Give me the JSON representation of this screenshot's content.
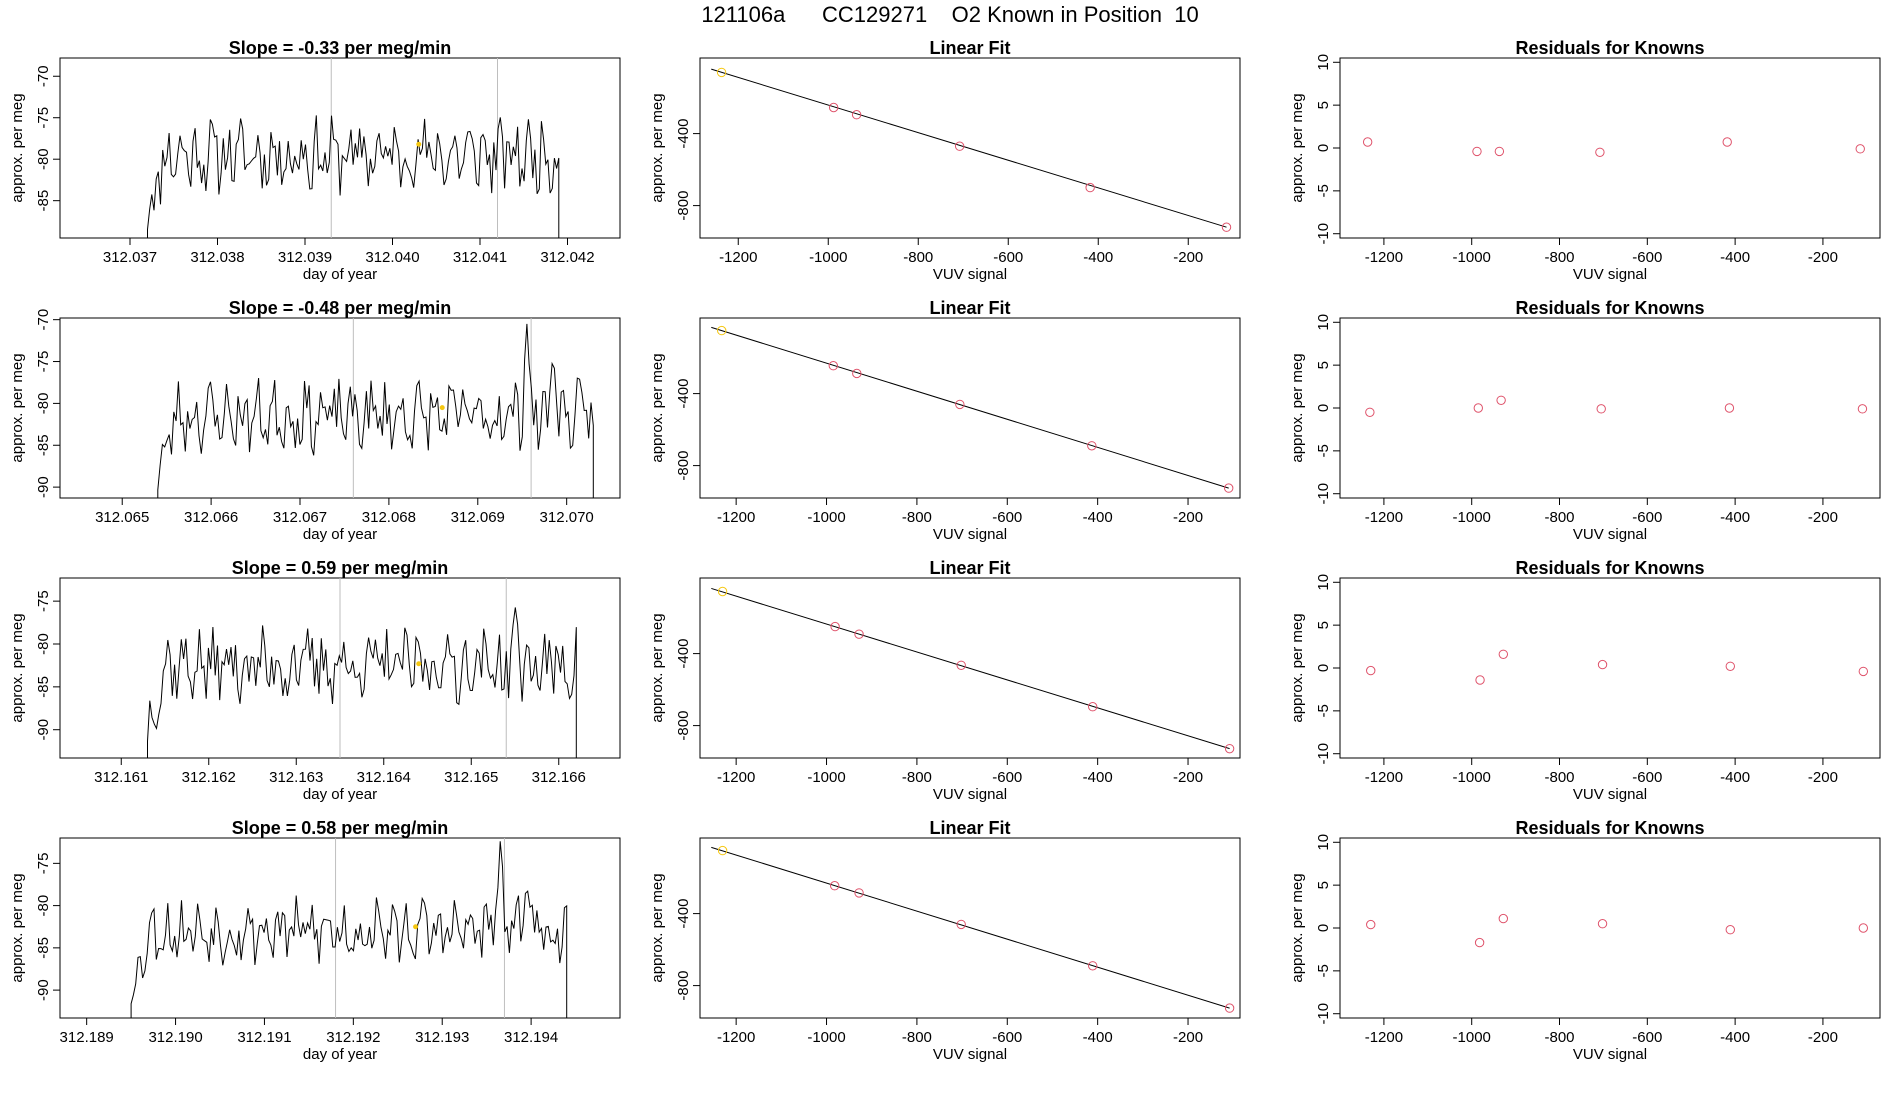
{
  "figure_title": "121106a      CC129271    O2 Known in Position  10",
  "colors": {
    "line": "#000000",
    "box": "#000000",
    "vline": "#bebebe",
    "point": "#df536b",
    "known_point": "#f5c710",
    "fit": "#000000"
  },
  "chart_data": [
    {
      "type": "line",
      "panel": "timeseries",
      "title": "Slope =  -0.33  per meg/min",
      "xlabel": "day of year",
      "ylabel": "approx. per meg",
      "xlim": [
        312.0362,
        312.0426
      ],
      "ylim": [
        -89.5,
        -67.8
      ],
      "xticks": [
        312.037,
        312.038,
        312.039,
        312.04,
        312.041,
        312.042
      ],
      "xtick_labels": [
        "312.037",
        "312.038",
        "312.039",
        "312.040",
        "312.041",
        "312.042"
      ],
      "yticks": [
        -85,
        -80,
        -75,
        -70
      ],
      "ytick_labels": [
        "-85",
        "-80",
        "-75",
        "-70"
      ],
      "vlines": [
        312.0393,
        312.0412
      ],
      "marker": {
        "x": 312.0403,
        "y": -78.2
      },
      "x_start": 312.0372,
      "x_end": 312.0419,
      "seed": 11,
      "base": -79.5,
      "amp": 3.4,
      "peaks": []
    },
    {
      "type": "line",
      "panel": "timeseries",
      "title": "Slope =  -0.48  per meg/min",
      "xlabel": "day of year",
      "ylabel": "approx. per meg",
      "xlim": [
        312.0643,
        312.0706
      ],
      "ylim": [
        -91.3,
        -69.8
      ],
      "xticks": [
        312.065,
        312.066,
        312.067,
        312.068,
        312.069,
        312.07
      ],
      "xtick_labels": [
        "312.065",
        "312.066",
        "312.067",
        "312.068",
        "312.069",
        "312.070"
      ],
      "yticks": [
        -90,
        -85,
        -80,
        -75,
        -70
      ],
      "ytick_labels": [
        "-90",
        "-85",
        "-80",
        "-75",
        "-70"
      ],
      "vlines": [
        312.0676,
        312.0696
      ],
      "marker": {
        "x": 312.0686,
        "y": -80.5
      },
      "x_start": 312.0654,
      "x_end": 312.0703,
      "seed": 23,
      "base": -81.5,
      "amp": 3.2,
      "peaks": [
        {
          "x": 312.06955,
          "y": -70.0
        },
        {
          "x": 312.06985,
          "y": -73.5
        }
      ]
    },
    {
      "type": "line",
      "panel": "timeseries",
      "title": "Slope =  0.59  per meg/min",
      "xlabel": "day of year",
      "ylabel": "approx. per meg",
      "xlim": [
        312.1603,
        312.1667
      ],
      "ylim": [
        -93.3,
        -72.3
      ],
      "xticks": [
        312.161,
        312.162,
        312.163,
        312.164,
        312.165,
        312.166
      ],
      "xtick_labels": [
        "312.161",
        "312.162",
        "312.163",
        "312.164",
        "312.165",
        "312.166"
      ],
      "yticks": [
        -90,
        -85,
        -80,
        -75
      ],
      "ytick_labels": [
        "-90",
        "-85",
        "-80",
        "-75"
      ],
      "vlines": [
        312.1635,
        312.1654
      ],
      "marker": {
        "x": 312.1644,
        "y": -82.3
      },
      "x_start": 312.1613,
      "x_end": 312.1662,
      "seed": 37,
      "base": -82.5,
      "amp": 3.3,
      "peaks": [
        {
          "x": 312.1655,
          "y": -75.5
        }
      ]
    },
    {
      "type": "line",
      "panel": "timeseries",
      "title": "Slope =  0.58  per meg/min",
      "xlabel": "day of year",
      "ylabel": "approx. per meg",
      "xlim": [
        312.1887,
        312.195
      ],
      "ylim": [
        -93.3,
        -72.0
      ],
      "xticks": [
        312.189,
        312.19,
        312.191,
        312.192,
        312.193,
        312.194
      ],
      "xtick_labels": [
        "312.189",
        "312.190",
        "312.191",
        "312.192",
        "312.193",
        "312.194"
      ],
      "yticks": [
        -90,
        -85,
        -80,
        -75
      ],
      "ytick_labels": [
        "-90",
        "-85",
        "-80",
        "-75"
      ],
      "vlines": [
        312.1918,
        312.1937
      ],
      "marker": {
        "x": 312.1927,
        "y": -82.5
      },
      "x_start": 312.1895,
      "x_end": 312.1944,
      "seed": 53,
      "base": -83.0,
      "amp": 2.9,
      "peaks": [
        {
          "x": 312.19365,
          "y": -72.0
        },
        {
          "x": 312.19395,
          "y": -76.0
        }
      ]
    },
    {
      "type": "scatter",
      "panel": "fit",
      "title": "Linear Fit",
      "xlabel": "VUV signal",
      "ylabel": "approx. per meg",
      "xlim": [
        -1285,
        -85
      ],
      "ylim": [
        -980,
        20
      ],
      "xticks": [
        -1200,
        -1000,
        -800,
        -600,
        -400,
        -200
      ],
      "xtick_labels": [
        "-1200",
        "-1000",
        "-800",
        "-600",
        "-400",
        "-200"
      ],
      "yticks": [
        -400,
        -800
      ],
      "ytick_labels": [
        "-400",
        "-800"
      ],
      "x": [
        -1237,
        -988,
        -937,
        -708,
        -418,
        -115
      ],
      "y": [
        -60,
        -255,
        -295,
        -470,
        -700,
        -920
      ],
      "fit_line": [
        [
          -1260,
          -42
        ],
        [
          -115,
          -920
        ]
      ],
      "known_index": 0
    },
    {
      "type": "scatter",
      "panel": "fit",
      "title": "Linear Fit",
      "xlabel": "VUV signal",
      "ylabel": "approx. per meg",
      "xlim": [
        -1280,
        -85
      ],
      "ylim": [
        -980,
        20
      ],
      "xticks": [
        -1200,
        -1000,
        -800,
        -600,
        -400,
        -200
      ],
      "xtick_labels": [
        "-1200",
        "-1000",
        "-800",
        "-600",
        "-400",
        "-200"
      ],
      "yticks": [
        -400,
        -800
      ],
      "ytick_labels": [
        "-400",
        "-800"
      ],
      "x": [
        -1232,
        -985,
        -933,
        -705,
        -413,
        -110
      ],
      "y": [
        -50,
        -245,
        -288,
        -460,
        -690,
        -925
      ],
      "fit_line": [
        [
          -1255,
          -32
        ],
        [
          -110,
          -925
        ]
      ],
      "known_index": 0
    },
    {
      "type": "scatter",
      "panel": "fit",
      "title": "Linear Fit",
      "xlabel": "VUV signal",
      "ylabel": "approx. per meg",
      "xlim": [
        -1280,
        -85
      ],
      "ylim": [
        -980,
        20
      ],
      "xticks": [
        -1200,
        -1000,
        -800,
        -600,
        -400,
        -200
      ],
      "xtick_labels": [
        "-1200",
        "-1000",
        "-800",
        "-600",
        "-400",
        "-200"
      ],
      "yticks": [
        -400,
        -800
      ],
      "ytick_labels": [
        "-400",
        "-800"
      ],
      "x": [
        -1230,
        -981,
        -928,
        -702,
        -411,
        -108
      ],
      "y": [
        -55,
        -250,
        -292,
        -465,
        -695,
        -928
      ],
      "fit_line": [
        [
          -1255,
          -38
        ],
        [
          -108,
          -928
        ]
      ],
      "known_index": 0
    },
    {
      "type": "scatter",
      "panel": "fit",
      "title": "Linear Fit",
      "xlabel": "VUV signal",
      "ylabel": "approx. per meg",
      "xlim": [
        -1280,
        -85
      ],
      "ylim": [
        -980,
        20
      ],
      "xticks": [
        -1200,
        -1000,
        -800,
        -600,
        -400,
        -200
      ],
      "xtick_labels": [
        "-1200",
        "-1000",
        "-800",
        "-600",
        "-400",
        "-200"
      ],
      "yticks": [
        -400,
        -800
      ],
      "ytick_labels": [
        "-400",
        "-800"
      ],
      "x": [
        -1230,
        -982,
        -928,
        -702,
        -411,
        -108
      ],
      "y": [
        -50,
        -245,
        -285,
        -460,
        -690,
        -925
      ],
      "fit_line": [
        [
          -1255,
          -32
        ],
        [
          -108,
          -925
        ]
      ],
      "known_index": 0
    },
    {
      "type": "scatter",
      "panel": "residuals",
      "title": "Residuals for Knowns",
      "xlabel": "VUV signal",
      "ylabel": "approx. per meg",
      "xlim": [
        -1300,
        -70
      ],
      "ylim": [
        -10.5,
        10.5
      ],
      "xticks": [
        -1200,
        -1000,
        -800,
        -600,
        -400,
        -200
      ],
      "xtick_labels": [
        "-1200",
        "-1000",
        "-800",
        "-600",
        "-400",
        "-200"
      ],
      "yticks": [
        -10,
        -5,
        0,
        5,
        10
      ],
      "ytick_labels": [
        "-10",
        "-5",
        "0",
        "5",
        "10"
      ],
      "x": [
        -1237,
        -988,
        -937,
        -708,
        -418,
        -115
      ],
      "y": [
        0.7,
        -0.4,
        -0.4,
        -0.5,
        0.7,
        -0.1
      ]
    },
    {
      "type": "scatter",
      "panel": "residuals",
      "title": "Residuals for Knowns",
      "xlabel": "VUV signal",
      "ylabel": "approx. per meg",
      "xlim": [
        -1300,
        -70
      ],
      "ylim": [
        -10.5,
        10.5
      ],
      "xticks": [
        -1200,
        -1000,
        -800,
        -600,
        -400,
        -200
      ],
      "xtick_labels": [
        "-1200",
        "-1000",
        "-800",
        "-600",
        "-400",
        "-200"
      ],
      "yticks": [
        -10,
        -5,
        0,
        5,
        10
      ],
      "ytick_labels": [
        "-10",
        "-5",
        "0",
        "5",
        "10"
      ],
      "x": [
        -1232,
        -985,
        -933,
        -705,
        -413,
        -110
      ],
      "y": [
        -0.5,
        0.0,
        0.9,
        -0.1,
        0.0,
        -0.1
      ]
    },
    {
      "type": "scatter",
      "panel": "residuals",
      "title": "Residuals for Knowns",
      "xlabel": "VUV signal",
      "ylabel": "approx. per meg",
      "xlim": [
        -1300,
        -70
      ],
      "ylim": [
        -10.5,
        10.5
      ],
      "xticks": [
        -1200,
        -1000,
        -800,
        -600,
        -400,
        -200
      ],
      "xtick_labels": [
        "-1200",
        "-1000",
        "-800",
        "-600",
        "-400",
        "-200"
      ],
      "yticks": [
        -10,
        -5,
        0,
        5,
        10
      ],
      "ytick_labels": [
        "-10",
        "-5",
        "0",
        "5",
        "10"
      ],
      "x": [
        -1230,
        -981,
        -928,
        -702,
        -411,
        -108
      ],
      "y": [
        -0.3,
        -1.4,
        1.6,
        0.4,
        0.2,
        -0.4
      ]
    },
    {
      "type": "scatter",
      "panel": "residuals",
      "title": "Residuals for Knowns",
      "xlabel": "VUV signal",
      "ylabel": "approx. per meg",
      "xlim": [
        -1300,
        -70
      ],
      "ylim": [
        -10.5,
        10.5
      ],
      "xticks": [
        -1200,
        -1000,
        -800,
        -600,
        -400,
        -200
      ],
      "xtick_labels": [
        "-1200",
        "-1000",
        "-800",
        "-600",
        "-400",
        "-200"
      ],
      "yticks": [
        -10,
        -5,
        0,
        5,
        10
      ],
      "ytick_labels": [
        "-10",
        "-5",
        "0",
        "5",
        "10"
      ],
      "x": [
        -1230,
        -982,
        -928,
        -702,
        -411,
        -108
      ],
      "y": [
        0.4,
        -1.7,
        1.1,
        0.5,
        -0.2,
        0.0
      ]
    }
  ]
}
